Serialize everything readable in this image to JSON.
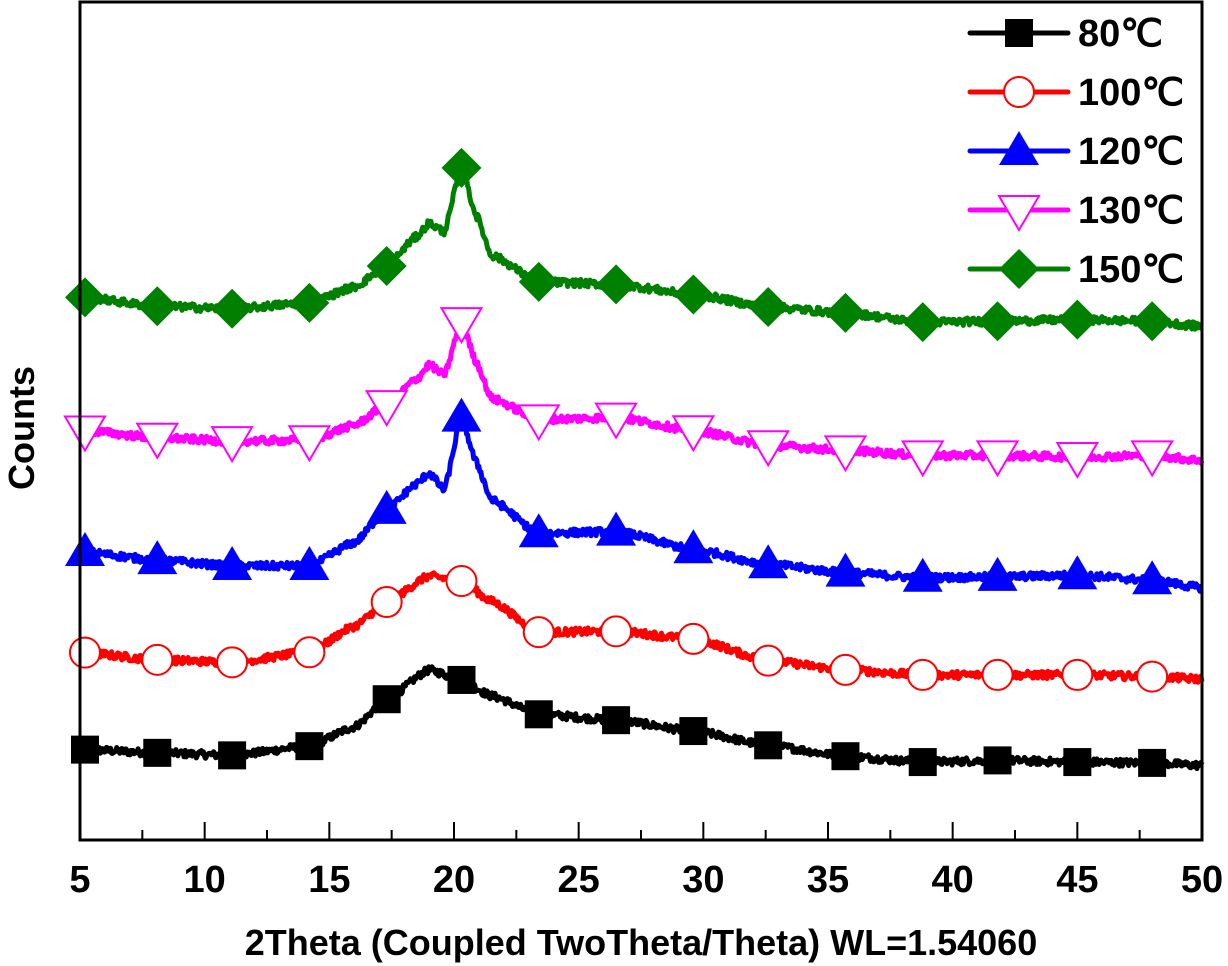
{
  "chart_data": {
    "type": "line",
    "title": "",
    "xlabel": "2Theta (Coupled TwoTheta/Theta) WL=1.54060",
    "ylabel": "Counts",
    "xlim": [
      5,
      50
    ],
    "ylim": [
      0,
      100
    ],
    "y_units": "arbitrary (offset, stacked patterns)",
    "x_ticks": [
      5,
      10,
      15,
      20,
      25,
      30,
      35,
      40,
      45,
      50
    ],
    "x_tick_labels": [
      "5",
      "10",
      "15",
      "20",
      "25",
      "30",
      "35",
      "40",
      "45",
      "50"
    ],
    "y_ticks_shown": false,
    "grid": false,
    "legend_position": "top-right",
    "marker_x": [
      5.2,
      8.1,
      11.1,
      14.2,
      17.3,
      20.3,
      23.4,
      26.5,
      29.6,
      32.6,
      35.7,
      38.8,
      41.8,
      45.0,
      48.0
    ],
    "series": [
      {
        "name": "80℃",
        "color": "#000000",
        "marker": "filled-square",
        "profile": [
          [
            5,
            10.8
          ],
          [
            8.1,
            10.4
          ],
          [
            11.1,
            10.1
          ],
          [
            14.2,
            11.2
          ],
          [
            16,
            13.5
          ],
          [
            17.3,
            16.8
          ],
          [
            19.0,
            20.3
          ],
          [
            20.3,
            19.1
          ],
          [
            21.5,
            17.2
          ],
          [
            23.4,
            15.0
          ],
          [
            26.5,
            14.3
          ],
          [
            29.6,
            13.0
          ],
          [
            32.6,
            11.3
          ],
          [
            35.7,
            10.0
          ],
          [
            38.8,
            9.3
          ],
          [
            41.8,
            9.5
          ],
          [
            45.0,
            9.3
          ],
          [
            48.0,
            9.2
          ],
          [
            50,
            8.9
          ]
        ]
      },
      {
        "name": "100℃",
        "color": "#ff0000",
        "marker": "open-circle",
        "profile": [
          [
            5,
            22.4
          ],
          [
            8.1,
            21.5
          ],
          [
            11.1,
            21.2
          ],
          [
            14.2,
            22.4
          ],
          [
            16,
            25.5
          ],
          [
            17.3,
            28.4
          ],
          [
            19.0,
            31.5
          ],
          [
            20.3,
            30.9
          ],
          [
            21.5,
            28.5
          ],
          [
            23.4,
            24.8
          ],
          [
            26.5,
            24.9
          ],
          [
            29.6,
            24.0
          ],
          [
            32.6,
            21.4
          ],
          [
            35.7,
            20.3
          ],
          [
            38.8,
            19.7
          ],
          [
            41.8,
            19.7
          ],
          [
            45.0,
            19.7
          ],
          [
            48.0,
            19.5
          ],
          [
            50,
            19.2
          ]
        ]
      },
      {
        "name": "120℃",
        "color": "#0000ff",
        "marker": "filled-triangle-up",
        "profile": [
          [
            5,
            34.4
          ],
          [
            8.1,
            33.4
          ],
          [
            11.1,
            32.7
          ],
          [
            14.2,
            32.7
          ],
          [
            16,
            35.5
          ],
          [
            17.3,
            39.4
          ],
          [
            18.5,
            42.5
          ],
          [
            19.0,
            43.8
          ],
          [
            19.6,
            41.8
          ],
          [
            20.3,
            50.4
          ],
          [
            20.9,
            45.0
          ],
          [
            21.5,
            40.6
          ],
          [
            23.4,
            36.6
          ],
          [
            26.5,
            36.8
          ],
          [
            29.6,
            34.7
          ],
          [
            32.6,
            32.9
          ],
          [
            35.7,
            31.9
          ],
          [
            38.8,
            31.3
          ],
          [
            41.8,
            31.4
          ],
          [
            45.0,
            31.6
          ],
          [
            48.0,
            31.0
          ],
          [
            50,
            30.1
          ]
        ]
      },
      {
        "name": "130℃",
        "color": "#ff00ff",
        "marker": "open-triangle-down",
        "profile": [
          [
            5,
            48.9
          ],
          [
            8.1,
            48.0
          ],
          [
            11.1,
            47.6
          ],
          [
            14.2,
            47.7
          ],
          [
            16,
            49.5
          ],
          [
            17.3,
            51.9
          ],
          [
            18.5,
            55.0
          ],
          [
            19.0,
            56.7
          ],
          [
            19.6,
            55.5
          ],
          [
            20.3,
            61.8
          ],
          [
            20.9,
            57.0
          ],
          [
            21.5,
            52.7
          ],
          [
            23.4,
            50.2
          ],
          [
            26.5,
            50.4
          ],
          [
            29.6,
            48.9
          ],
          [
            32.6,
            47.1
          ],
          [
            35.7,
            46.5
          ],
          [
            38.8,
            45.9
          ],
          [
            41.8,
            45.9
          ],
          [
            45.0,
            45.7
          ],
          [
            48.0,
            45.9
          ],
          [
            50,
            45.3
          ]
        ]
      },
      {
        "name": "150℃",
        "color": "#008000",
        "marker": "filled-diamond",
        "profile": [
          [
            5,
            64.8
          ],
          [
            8.1,
            63.7
          ],
          [
            11.1,
            63.4
          ],
          [
            14.2,
            64.1
          ],
          [
            16,
            66.0
          ],
          [
            17.3,
            68.5
          ],
          [
            18.5,
            72.0
          ],
          [
            19.0,
            73.6
          ],
          [
            19.6,
            72.6
          ],
          [
            20.3,
            80.2
          ],
          [
            20.9,
            74.5
          ],
          [
            21.5,
            69.8
          ],
          [
            23.4,
            66.6
          ],
          [
            26.5,
            66.3
          ],
          [
            29.6,
            65.1
          ],
          [
            32.6,
            63.6
          ],
          [
            35.7,
            62.9
          ],
          [
            38.8,
            61.8
          ],
          [
            41.8,
            61.9
          ],
          [
            45.0,
            62.1
          ],
          [
            48.0,
            61.9
          ],
          [
            50,
            61.3
          ]
        ]
      }
    ]
  }
}
